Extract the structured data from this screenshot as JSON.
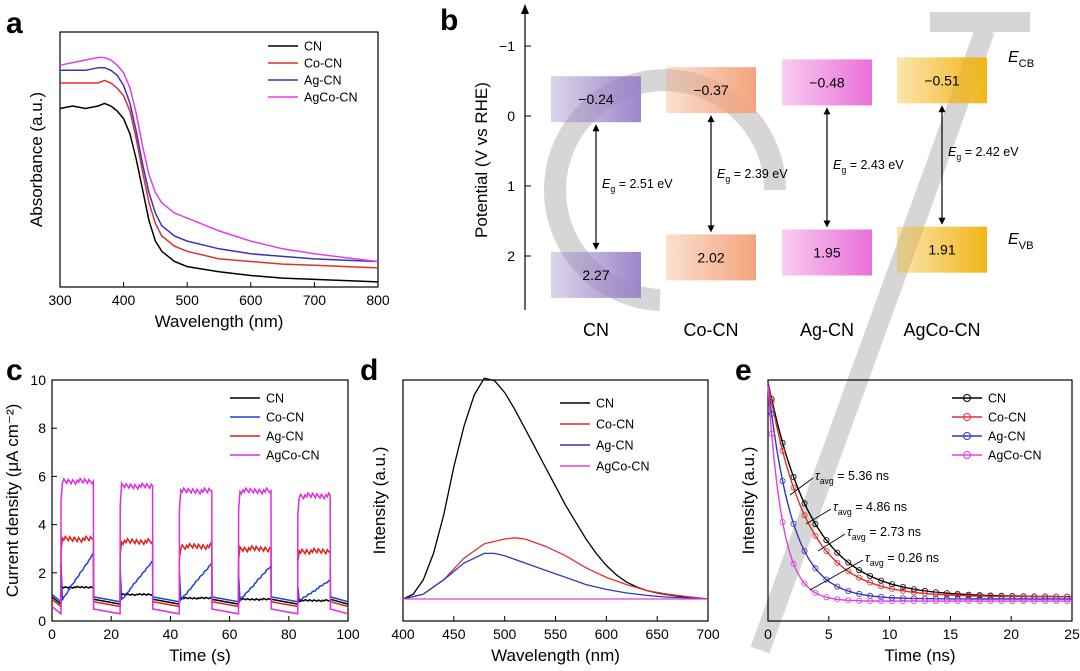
{
  "panels": {
    "a": {
      "label": "a",
      "chart_data": {
        "type": "line",
        "xlabel": "Wavelength (nm)",
        "ylabel": "Absorbance (a.u.)",
        "xlim": [
          300,
          800
        ],
        "xticks": [
          300,
          400,
          500,
          600,
          700,
          800
        ],
        "yticks_shown": false,
        "legend_position": "top-right",
        "series": [
          {
            "name": "CN",
            "color": "#000000",
            "x": [
              300,
              320,
              340,
              360,
              370,
              380,
              390,
              400,
              410,
              420,
              430,
              440,
              450,
              460,
              480,
              500,
              550,
              600,
              650,
              700,
              750,
              800
            ],
            "y": [
              0.7,
              0.71,
              0.7,
              0.71,
              0.72,
              0.71,
              0.69,
              0.66,
              0.6,
              0.5,
              0.38,
              0.26,
              0.18,
              0.14,
              0.1,
              0.08,
              0.06,
              0.045,
              0.035,
              0.03,
              0.025,
              0.02
            ]
          },
          {
            "name": "Co-CN",
            "color": "#e0302a",
            "x": [
              300,
              320,
              340,
              360,
              370,
              380,
              390,
              400,
              410,
              420,
              430,
              440,
              450,
              460,
              480,
              500,
              550,
              600,
              650,
              700,
              750,
              800
            ],
            "y": [
              0.8,
              0.8,
              0.8,
              0.8,
              0.81,
              0.8,
              0.78,
              0.75,
              0.69,
              0.58,
              0.45,
              0.33,
              0.25,
              0.2,
              0.16,
              0.14,
              0.11,
              0.1,
              0.09,
              0.085,
              0.08,
              0.075
            ]
          },
          {
            "name": "Ag-CN",
            "color": "#3535c0",
            "x": [
              300,
              320,
              340,
              360,
              370,
              380,
              390,
              400,
              410,
              420,
              430,
              440,
              450,
              460,
              480,
              500,
              550,
              600,
              650,
              700,
              750,
              800
            ],
            "y": [
              0.85,
              0.85,
              0.85,
              0.86,
              0.86,
              0.85,
              0.83,
              0.79,
              0.72,
              0.61,
              0.48,
              0.37,
              0.29,
              0.24,
              0.2,
              0.18,
              0.15,
              0.13,
              0.12,
              0.11,
              0.105,
              0.1
            ]
          },
          {
            "name": "AgCo-CN",
            "color": "#e040e0",
            "x": [
              300,
              320,
              340,
              360,
              370,
              380,
              390,
              400,
              410,
              420,
              430,
              440,
              450,
              460,
              480,
              500,
              550,
              600,
              650,
              700,
              750,
              800
            ],
            "y": [
              0.87,
              0.88,
              0.89,
              0.9,
              0.9,
              0.89,
              0.87,
              0.84,
              0.78,
              0.68,
              0.55,
              0.44,
              0.37,
              0.33,
              0.29,
              0.27,
              0.22,
              0.18,
              0.15,
              0.13,
              0.115,
              0.1
            ]
          }
        ]
      }
    },
    "b": {
      "label": "b",
      "chart_data": {
        "type": "bar",
        "ylabel": "Potential (V vs RHE)",
        "yticks": [
          -1,
          0,
          1,
          2
        ],
        "y_inverted": true,
        "categories": [
          "CN",
          "Co-CN",
          "Ag-CN",
          "AgCo-CN"
        ],
        "cb_values": [
          -0.24,
          -0.37,
          -0.48,
          -0.51
        ],
        "vb_values": [
          2.27,
          2.02,
          1.95,
          1.91
        ],
        "cb_labels": [
          "−0.24",
          "−0.37",
          "−0.48",
          "−0.51"
        ],
        "vb_labels": [
          "2.27",
          "2.02",
          "1.95",
          "1.91"
        ],
        "gaps": [
          {
            "prefix": "E",
            "sub": "g",
            "text": " = 2.51 eV"
          },
          {
            "prefix": "E",
            "sub": "g",
            "text": " = 2.39 eV"
          },
          {
            "prefix": "E",
            "sub": "g",
            "text": " = 2.43 eV"
          },
          {
            "prefix": "E",
            "sub": "g",
            "text": " = 2.42 eV"
          }
        ],
        "colors": [
          "#9d85c8",
          "#f3a47c",
          "#ea6fd9",
          "#f2b517"
        ],
        "side_labels": [
          {
            "main": "E",
            "sub": "CB"
          },
          {
            "main": "E",
            "sub": "VB"
          }
        ]
      }
    },
    "c": {
      "label": "c",
      "chart_data": {
        "type": "line",
        "xlabel": "Time (s)",
        "ylabel": "Current density (μA cm⁻²)",
        "xlim": [
          0,
          100
        ],
        "ylim": [
          0,
          10
        ],
        "xticks": [
          0,
          20,
          40,
          60,
          80,
          100
        ],
        "yticks": [
          0,
          2,
          4,
          6,
          8,
          10
        ],
        "legend_position": "top-right",
        "on_intervals": [
          [
            3,
            14
          ],
          [
            23,
            34
          ],
          [
            43,
            54
          ],
          [
            63,
            74
          ],
          [
            83,
            94
          ]
        ],
        "series": [
          {
            "name": "CN",
            "color": "#000000",
            "on": [
              1.4,
              1.1,
              0.95,
              0.9,
              0.85
            ],
            "dark": 0.7
          },
          {
            "name": "Co-CN",
            "color": "#1f3fe0",
            "on": [
              2.8,
              2.5,
              2.4,
              2.3,
              1.7
            ],
            "dark": 0.8
          },
          {
            "name": "Ag-CN",
            "color": "#e0201a",
            "on": [
              3.4,
              3.3,
              3.1,
              3.0,
              2.9
            ],
            "dark": 0.6
          },
          {
            "name": "AgCo-CN",
            "color": "#e02de0",
            "on": [
              5.8,
              5.6,
              5.4,
              5.4,
              5.2
            ],
            "dark": 0.3
          }
        ]
      }
    },
    "d": {
      "label": "d",
      "chart_data": {
        "type": "line",
        "xlabel": "Wavelength (nm)",
        "ylabel": "Intensity (a.u.)",
        "xlim": [
          400,
          700
        ],
        "xticks": [
          400,
          450,
          500,
          550,
          600,
          650,
          700
        ],
        "yticks_shown": false,
        "legend_position": "top-right",
        "series": [
          {
            "name": "CN",
            "color": "#000000",
            "x": [
              400,
              410,
              420,
              430,
              440,
              450,
              460,
              470,
              480,
              490,
              500,
              510,
              520,
              530,
              540,
              550,
              560,
              570,
              580,
              590,
              600,
              610,
              620,
              630,
              640,
              650,
              660,
              670,
              680,
              690,
              700
            ],
            "y": [
              0.0,
              0.02,
              0.08,
              0.19,
              0.35,
              0.55,
              0.72,
              0.85,
              0.92,
              0.91,
              0.86,
              0.79,
              0.71,
              0.63,
              0.55,
              0.47,
              0.39,
              0.32,
              0.25,
              0.19,
              0.14,
              0.1,
              0.07,
              0.05,
              0.035,
              0.025,
              0.018,
              0.012,
              0.008,
              0.004,
              0.0
            ]
          },
          {
            "name": "Co-CN",
            "color": "#e03030",
            "x": [
              400,
              420,
              440,
              460,
              480,
              500,
              510,
              520,
              540,
              560,
              580,
              600,
              620,
              640,
              660,
              680,
              700
            ],
            "y": [
              0.0,
              0.02,
              0.08,
              0.17,
              0.23,
              0.25,
              0.255,
              0.25,
              0.22,
              0.18,
              0.13,
              0.09,
              0.06,
              0.035,
              0.02,
              0.01,
              0.0
            ]
          },
          {
            "name": "Ag-CN",
            "color": "#3535c0",
            "x": [
              400,
              420,
              440,
              460,
              480,
              490,
              500,
              520,
              540,
              560,
              580,
              600,
              620,
              640,
              660,
              680,
              700
            ],
            "y": [
              0.0,
              0.02,
              0.08,
              0.15,
              0.19,
              0.19,
              0.18,
              0.15,
              0.12,
              0.09,
              0.06,
              0.04,
              0.025,
              0.015,
              0.008,
              0.004,
              0.0
            ]
          },
          {
            "name": "AgCo-CN",
            "color": "#e040e0",
            "x": [
              400,
              700
            ],
            "y": [
              0.0,
              0.0
            ]
          }
        ]
      }
    },
    "e": {
      "label": "e",
      "chart_data": {
        "type": "scatter",
        "xlabel": "Time (ns)",
        "ylabel": "Intensity (a.u.)",
        "xlim": [
          0,
          25
        ],
        "xticks": [
          0,
          5,
          10,
          15,
          20,
          25
        ],
        "yticks_shown": false,
        "legend_position": "top-right",
        "series": [
          {
            "name": "CN",
            "color": "#000000",
            "tau": 5.36
          },
          {
            "name": "Co-CN",
            "color": "#e03030",
            "tau": 4.86
          },
          {
            "name": "Ag-CN",
            "color": "#3535c0",
            "tau": 2.73
          },
          {
            "name": "AgCo-CN",
            "color": "#e040e0",
            "tau": 0.26
          }
        ],
        "annotations": [
          {
            "symbol": "τ",
            "sub": "avg",
            "text": " = 5.36 ns"
          },
          {
            "symbol": "τ",
            "sub": "avg",
            "text": " = 4.86 ns"
          },
          {
            "symbol": "τ",
            "sub": "avg",
            "text": " = 2.73 ns"
          },
          {
            "symbol": "τ",
            "sub": "avg",
            "text": " = 0.26 ns"
          }
        ]
      }
    }
  }
}
